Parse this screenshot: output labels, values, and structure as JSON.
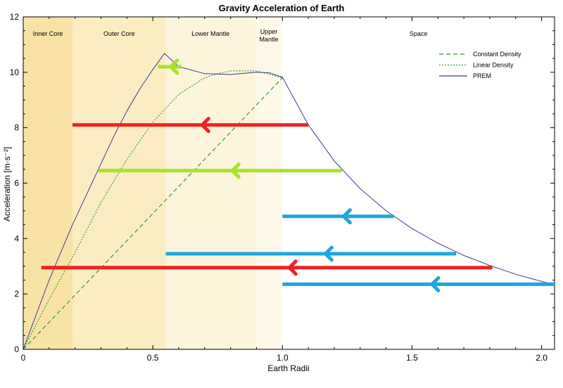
{
  "chart_data": {
    "type": "line",
    "title": "Gravity Acceleration of Earth",
    "xlabel": "Earth Radii",
    "ylabel": "Acceleration [m·s⁻²]",
    "xlim": [
      0,
      2.05
    ],
    "ylim": [
      0,
      12
    ],
    "xticks": [
      0,
      0.5,
      1.0,
      1.5,
      2.0
    ],
    "xtick_labels": [
      "0",
      "0.5",
      "1.0",
      "1.5",
      "2.0"
    ],
    "yticks": [
      0,
      2,
      4,
      6,
      8,
      10,
      12
    ],
    "ytick_labels": [
      "0",
      "2",
      "4",
      "6",
      "8",
      "10",
      "12"
    ],
    "legend_position": "top-right",
    "regions": [
      {
        "label": "Inner Core",
        "x0": 0,
        "x1": 0.19,
        "color": "#f9e2a6"
      },
      {
        "label": "Outer Core",
        "x0": 0.19,
        "x1": 0.55,
        "color": "#fcecc2"
      },
      {
        "label": "Lower Mantle",
        "x0": 0.55,
        "x1": 0.895,
        "color": "#fdf4dc"
      },
      {
        "label": "Upper Mantle",
        "x0": 0.895,
        "x1": 1.0,
        "color": "#fef8e8"
      },
      {
        "label": "Space",
        "x0": 1.0,
        "x1": 2.05,
        "color": "#ffffff"
      }
    ],
    "series": [
      {
        "name": "Constant Density",
        "style": "dashed",
        "color": "#2e9a2e",
        "x": [
          0,
          1.0
        ],
        "y": [
          0,
          9.8
        ]
      },
      {
        "name": "Linear Density",
        "style": "dotted",
        "color": "#2ca82c",
        "x": [
          0,
          0.1,
          0.2,
          0.3,
          0.4,
          0.5,
          0.6,
          0.7,
          0.75,
          0.8,
          0.9,
          1.0
        ],
        "y": [
          0,
          1.8,
          3.5,
          5.3,
          6.85,
          8.2,
          9.2,
          9.8,
          9.95,
          10.05,
          10.05,
          9.8
        ]
      },
      {
        "name": "PREM",
        "style": "solid",
        "color": "#3a3a9a",
        "x": [
          0,
          0.05,
          0.1,
          0.19,
          0.25,
          0.3,
          0.35,
          0.4,
          0.45,
          0.5,
          0.545,
          0.6,
          0.7,
          0.8,
          0.9,
          0.95,
          1.0,
          1.1,
          1.2,
          1.3,
          1.4,
          1.5,
          1.6,
          1.7,
          1.8,
          1.9,
          2.0,
          2.04
        ],
        "y": [
          0,
          1.25,
          2.5,
          4.5,
          5.7,
          6.7,
          7.7,
          8.6,
          9.4,
          10.1,
          10.68,
          10.2,
          9.95,
          9.92,
          10.0,
          9.98,
          9.82,
          8.1,
          6.8,
          5.8,
          5.0,
          4.36,
          3.83,
          3.39,
          3.03,
          2.71,
          2.45,
          2.36
        ]
      }
    ],
    "arrows": [
      {
        "color": "#a8e22a",
        "x_tail": 0.61,
        "x_head": 0.52,
        "y": 10.2
      },
      {
        "color": "#ee2222",
        "x_tail": 1.1,
        "x_head": 0.19,
        "y": 8.1
      },
      {
        "color": "#a8e22a",
        "x_tail": 1.23,
        "x_head": 0.29,
        "y": 6.45
      },
      {
        "color": "#1ea6e0",
        "x_tail": 1.43,
        "x_head": 1.0,
        "y": 4.8
      },
      {
        "color": "#1ea6e0",
        "x_tail": 1.67,
        "x_head": 0.55,
        "y": 3.45
      },
      {
        "color": "#ee2222",
        "x_tail": 1.81,
        "x_head": 0.07,
        "y": 2.95
      },
      {
        "color": "#1ea6e0",
        "x_tail": 2.05,
        "x_head": 1.0,
        "y": 2.35
      }
    ]
  }
}
